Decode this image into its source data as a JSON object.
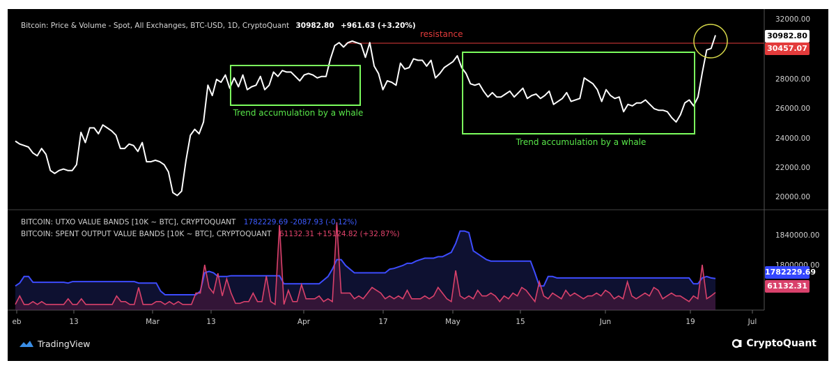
{
  "header": {
    "title": "Bitcoin: Price & Volume - Spot, All Exchanges, BTC-USD, 1D, CryptoQuant",
    "last": "30982.80",
    "change": "+961.63 (+3.20%)"
  },
  "indicators": {
    "utxo": {
      "label": "BITCOIN: UTXO VALUE BANDS [10K ~ BTC], CRYPTOQUANT",
      "values": "1782229.69  -2087.93 (-0.12%)"
    },
    "spent": {
      "label": "BITCOIN: SPENT OUTPUT VALUE BANDS [10K ~ BTC], CRYPTOQUANT",
      "values": "61132.31  +15124.82 (+32.87%)"
    }
  },
  "badges": {
    "price_last": "30982.80",
    "resistance": "30457.07",
    "utxo_last": "1782229.69",
    "spent_last": "61132.31"
  },
  "annotations": {
    "resistance": "resistance",
    "whale_1": "Trend accumulation by a whale",
    "whale_2": "Trend accumulation by a whale"
  },
  "footer": {
    "tradingview": "TradingView",
    "cryptoquant": "CryptoQuant"
  },
  "colors": {
    "price_line": "#ffffff",
    "utxo_line": "#3d4cff",
    "spent_line": "#d9416b",
    "resistance": "#e33b3b",
    "annotation_box": "#7cff5e",
    "highlight_circle": "#d7d94a",
    "background": "#000000"
  },
  "chart_data": [
    {
      "type": "line",
      "title": "Bitcoin: Price & Volume - Spot, All Exchanges, BTC-USD, 1D, CryptoQuant",
      "x_ticks": [
        "eb",
        "13",
        "Mar",
        "13",
        "Apr",
        "17",
        "May",
        "15",
        "Jun",
        "19",
        "Jul"
      ],
      "y_ticks": [
        "32000.00",
        "30000.00",
        "28000.00",
        "26000.00",
        "24000.00",
        "22000.00",
        "20000.00"
      ],
      "ylim": [
        19500,
        32400
      ],
      "resistance_level": 30457.07,
      "series": [
        {
          "values": [
            23800,
            23600,
            23500,
            23400,
            23000,
            22800,
            23300,
            22900,
            21800,
            21600,
            21800,
            21900,
            21800,
            21800,
            22200,
            24400,
            23700,
            24700,
            24700,
            24300,
            24900,
            24700,
            24500,
            24200,
            23300,
            23300,
            23600,
            23500,
            23100,
            23700,
            22400,
            22400,
            22500,
            22400,
            22200,
            21700,
            20300,
            20100,
            20400,
            22500,
            24200,
            24600,
            24300,
            25100,
            27600,
            26900,
            28000,
            27800,
            28300,
            27400,
            28100,
            27500,
            28300,
            27300,
            27500,
            27600,
            28200,
            27300,
            27600,
            28500,
            28200,
            28600,
            28500,
            28500,
            28200,
            27900,
            28300,
            28400,
            28300,
            28100,
            28200,
            28200,
            29400,
            30300,
            30500,
            30200,
            30500,
            30600,
            30500,
            30400,
            29500,
            30500,
            28900,
            28400,
            27300,
            27900,
            27800,
            27600,
            29100,
            28700,
            28800,
            29400,
            29300,
            29300,
            28900,
            29300,
            28100,
            28400,
            28800,
            29000,
            29200,
            29600,
            28800,
            28400,
            27700,
            27600,
            27700,
            27200,
            26800,
            27100,
            26800,
            26800,
            27000,
            27200,
            26800,
            27100,
            27400,
            26700,
            26900,
            27000,
            26700,
            26900,
            27200,
            26300,
            26500,
            26700,
            27100,
            26500,
            26600,
            26700,
            28100,
            27900,
            27700,
            27300,
            26500,
            27300,
            26900,
            26700,
            26800,
            25800,
            26300,
            26200,
            26400,
            26400,
            26600,
            26300,
            26000,
            25900,
            25900,
            25800,
            25400,
            25100,
            25600,
            26400,
            26600,
            26200,
            26800,
            28500,
            30000,
            30100,
            31000
          ]
        }
      ]
    },
    {
      "type": "line",
      "title": "BITCOIN: UTXO VALUE BANDS [10K ~ BTC], CRYPTOQUANT / BITCOIN: SPENT OUTPUT VALUE BANDS [10K ~ BTC], CRYPTOQUANT",
      "y_ticks": [
        "1840000.00",
        "1800000.00"
      ],
      "series": [
        {
          "name": "BITCOIN: UTXO VALUE BANDS [10K ~ BTC], CRYPTOQUANT",
          "values": [
            1772000,
            1776000,
            1785000,
            1785000,
            1777000,
            1777000,
            1777000,
            1777000,
            1777000,
            1777000,
            1777000,
            1777000,
            1776000,
            1778000,
            1778000,
            1778000,
            1778000,
            1778000,
            1778000,
            1778000,
            1778000,
            1778000,
            1778000,
            1778000,
            1778000,
            1778000,
            1778000,
            1778000,
            1776000,
            1776000,
            1776000,
            1776000,
            1776000,
            1765000,
            1760000,
            1760000,
            1760000,
            1760000,
            1760000,
            1760000,
            1760000,
            1760000,
            1765000,
            1790000,
            1792000,
            1790000,
            1785000,
            1785000,
            1785000,
            1786000,
            1786000,
            1786000,
            1786000,
            1786000,
            1786000,
            1786000,
            1786000,
            1786000,
            1786000,
            1786000,
            1786000,
            1775000,
            1775000,
            1775000,
            1775000,
            1775000,
            1775000,
            1775000,
            1775000,
            1775000,
            1780000,
            1785000,
            1795000,
            1808000,
            1808000,
            1800000,
            1795000,
            1790000,
            1790000,
            1790000,
            1790000,
            1790000,
            1790000,
            1790000,
            1790000,
            1795000,
            1796000,
            1798000,
            1800000,
            1803000,
            1803000,
            1806000,
            1808000,
            1810000,
            1810000,
            1810000,
            1812000,
            1812000,
            1815000,
            1818000,
            1830000,
            1847000,
            1847000,
            1845000,
            1820000,
            1816000,
            1812000,
            1808000,
            1806000,
            1806000,
            1806000,
            1806000,
            1806000,
            1806000,
            1806000,
            1806000,
            1806000,
            1806000,
            1790000,
            1772000,
            1772000,
            1785000,
            1785000,
            1783000,
            1783000,
            1783000,
            1783000,
            1783000,
            1783000,
            1783000,
            1783000,
            1783000,
            1783000,
            1783000,
            1783000,
            1783000,
            1783000,
            1783000,
            1783000,
            1783000,
            1783000,
            1783000,
            1783000,
            1783000,
            1783000,
            1783000,
            1783000,
            1783000,
            1783000,
            1783000,
            1783000,
            1783000,
            1783000,
            1783000,
            1775000,
            1775000,
            1783000,
            1785000,
            1783000,
            1782230
          ]
        },
        {
          "name": "BITCOIN: SPENT OUTPUT VALUE BANDS [10K ~ BTC], CRYPTOQUANT",
          "values": [
            40000,
            55000,
            40000,
            40000,
            45000,
            40000,
            45000,
            40000,
            40000,
            40000,
            40000,
            40000,
            50000,
            40000,
            40000,
            50000,
            40000,
            40000,
            40000,
            40000,
            40000,
            40000,
            40000,
            55000,
            45000,
            45000,
            40000,
            40000,
            70000,
            40000,
            40000,
            40000,
            45000,
            45000,
            40000,
            45000,
            40000,
            45000,
            40000,
            40000,
            40000,
            60000,
            60000,
            110000,
            70000,
            60000,
            95000,
            55000,
            85000,
            60000,
            42000,
            42000,
            45000,
            45000,
            60000,
            45000,
            45000,
            90000,
            45000,
            40000,
            180000,
            40000,
            65000,
            45000,
            45000,
            75000,
            50000,
            50000,
            50000,
            55000,
            45000,
            50000,
            45000,
            185000,
            60000,
            60000,
            60000,
            50000,
            55000,
            50000,
            60000,
            70000,
            65000,
            60000,
            50000,
            55000,
            50000,
            55000,
            50000,
            65000,
            50000,
            50000,
            50000,
            55000,
            50000,
            55000,
            70000,
            60000,
            50000,
            45000,
            100000,
            55000,
            50000,
            55000,
            50000,
            65000,
            55000,
            55000,
            60000,
            55000,
            45000,
            55000,
            50000,
            60000,
            55000,
            70000,
            65000,
            55000,
            45000,
            80000,
            55000,
            50000,
            60000,
            55000,
            50000,
            65000,
            55000,
            60000,
            55000,
            50000,
            55000,
            55000,
            60000,
            55000,
            65000,
            60000,
            50000,
            55000,
            50000,
            80000,
            55000,
            50000,
            55000,
            60000,
            55000,
            70000,
            65000,
            50000,
            55000,
            60000,
            55000,
            55000,
            50000,
            45000,
            55000,
            50000,
            110000,
            50000,
            55000,
            61132
          ]
        }
      ]
    }
  ]
}
